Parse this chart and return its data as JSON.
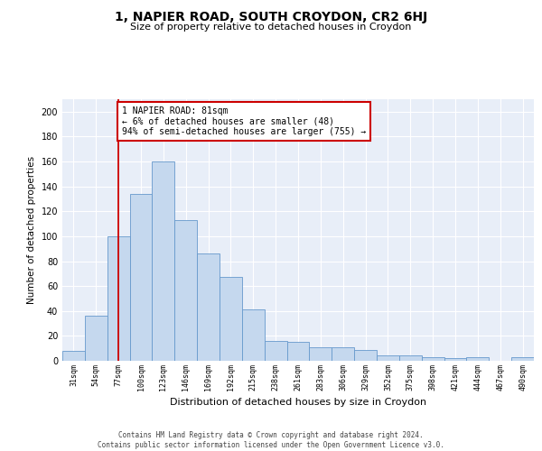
{
  "title": "1, NAPIER ROAD, SOUTH CROYDON, CR2 6HJ",
  "subtitle": "Size of property relative to detached houses in Croydon",
  "xlabel": "Distribution of detached houses by size in Croydon",
  "ylabel": "Number of detached properties",
  "categories": [
    "31sqm",
    "54sqm",
    "77sqm",
    "100sqm",
    "123sqm",
    "146sqm",
    "169sqm",
    "192sqm",
    "215sqm",
    "238sqm",
    "261sqm",
    "283sqm",
    "306sqm",
    "329sqm",
    "352sqm",
    "375sqm",
    "398sqm",
    "421sqm",
    "444sqm",
    "467sqm",
    "490sqm"
  ],
  "values": [
    8,
    36,
    100,
    134,
    160,
    113,
    86,
    67,
    41,
    16,
    15,
    11,
    11,
    9,
    4,
    4,
    3,
    2,
    3,
    0,
    3
  ],
  "bar_color": "#c5d8ee",
  "bar_edge_color": "#6699cc",
  "vline_x_idx": 2,
  "vline_color": "#cc0000",
  "annotation_text": "1 NAPIER ROAD: 81sqm\n← 6% of detached houses are smaller (48)\n94% of semi-detached houses are larger (755) →",
  "annotation_box_facecolor": "#ffffff",
  "annotation_box_edgecolor": "#cc0000",
  "ylim": [
    0,
    210
  ],
  "yticks": [
    0,
    20,
    40,
    60,
    80,
    100,
    120,
    140,
    160,
    180,
    200
  ],
  "plot_bg_color": "#e8eef8",
  "grid_color": "#ffffff",
  "title_fontsize": 10,
  "subtitle_fontsize": 8,
  "ylabel_fontsize": 7.5,
  "xlabel_fontsize": 8,
  "ytick_fontsize": 7,
  "xtick_fontsize": 6,
  "footer_line1": "Contains HM Land Registry data © Crown copyright and database right 2024.",
  "footer_line2": "Contains public sector information licensed under the Open Government Licence v3.0."
}
